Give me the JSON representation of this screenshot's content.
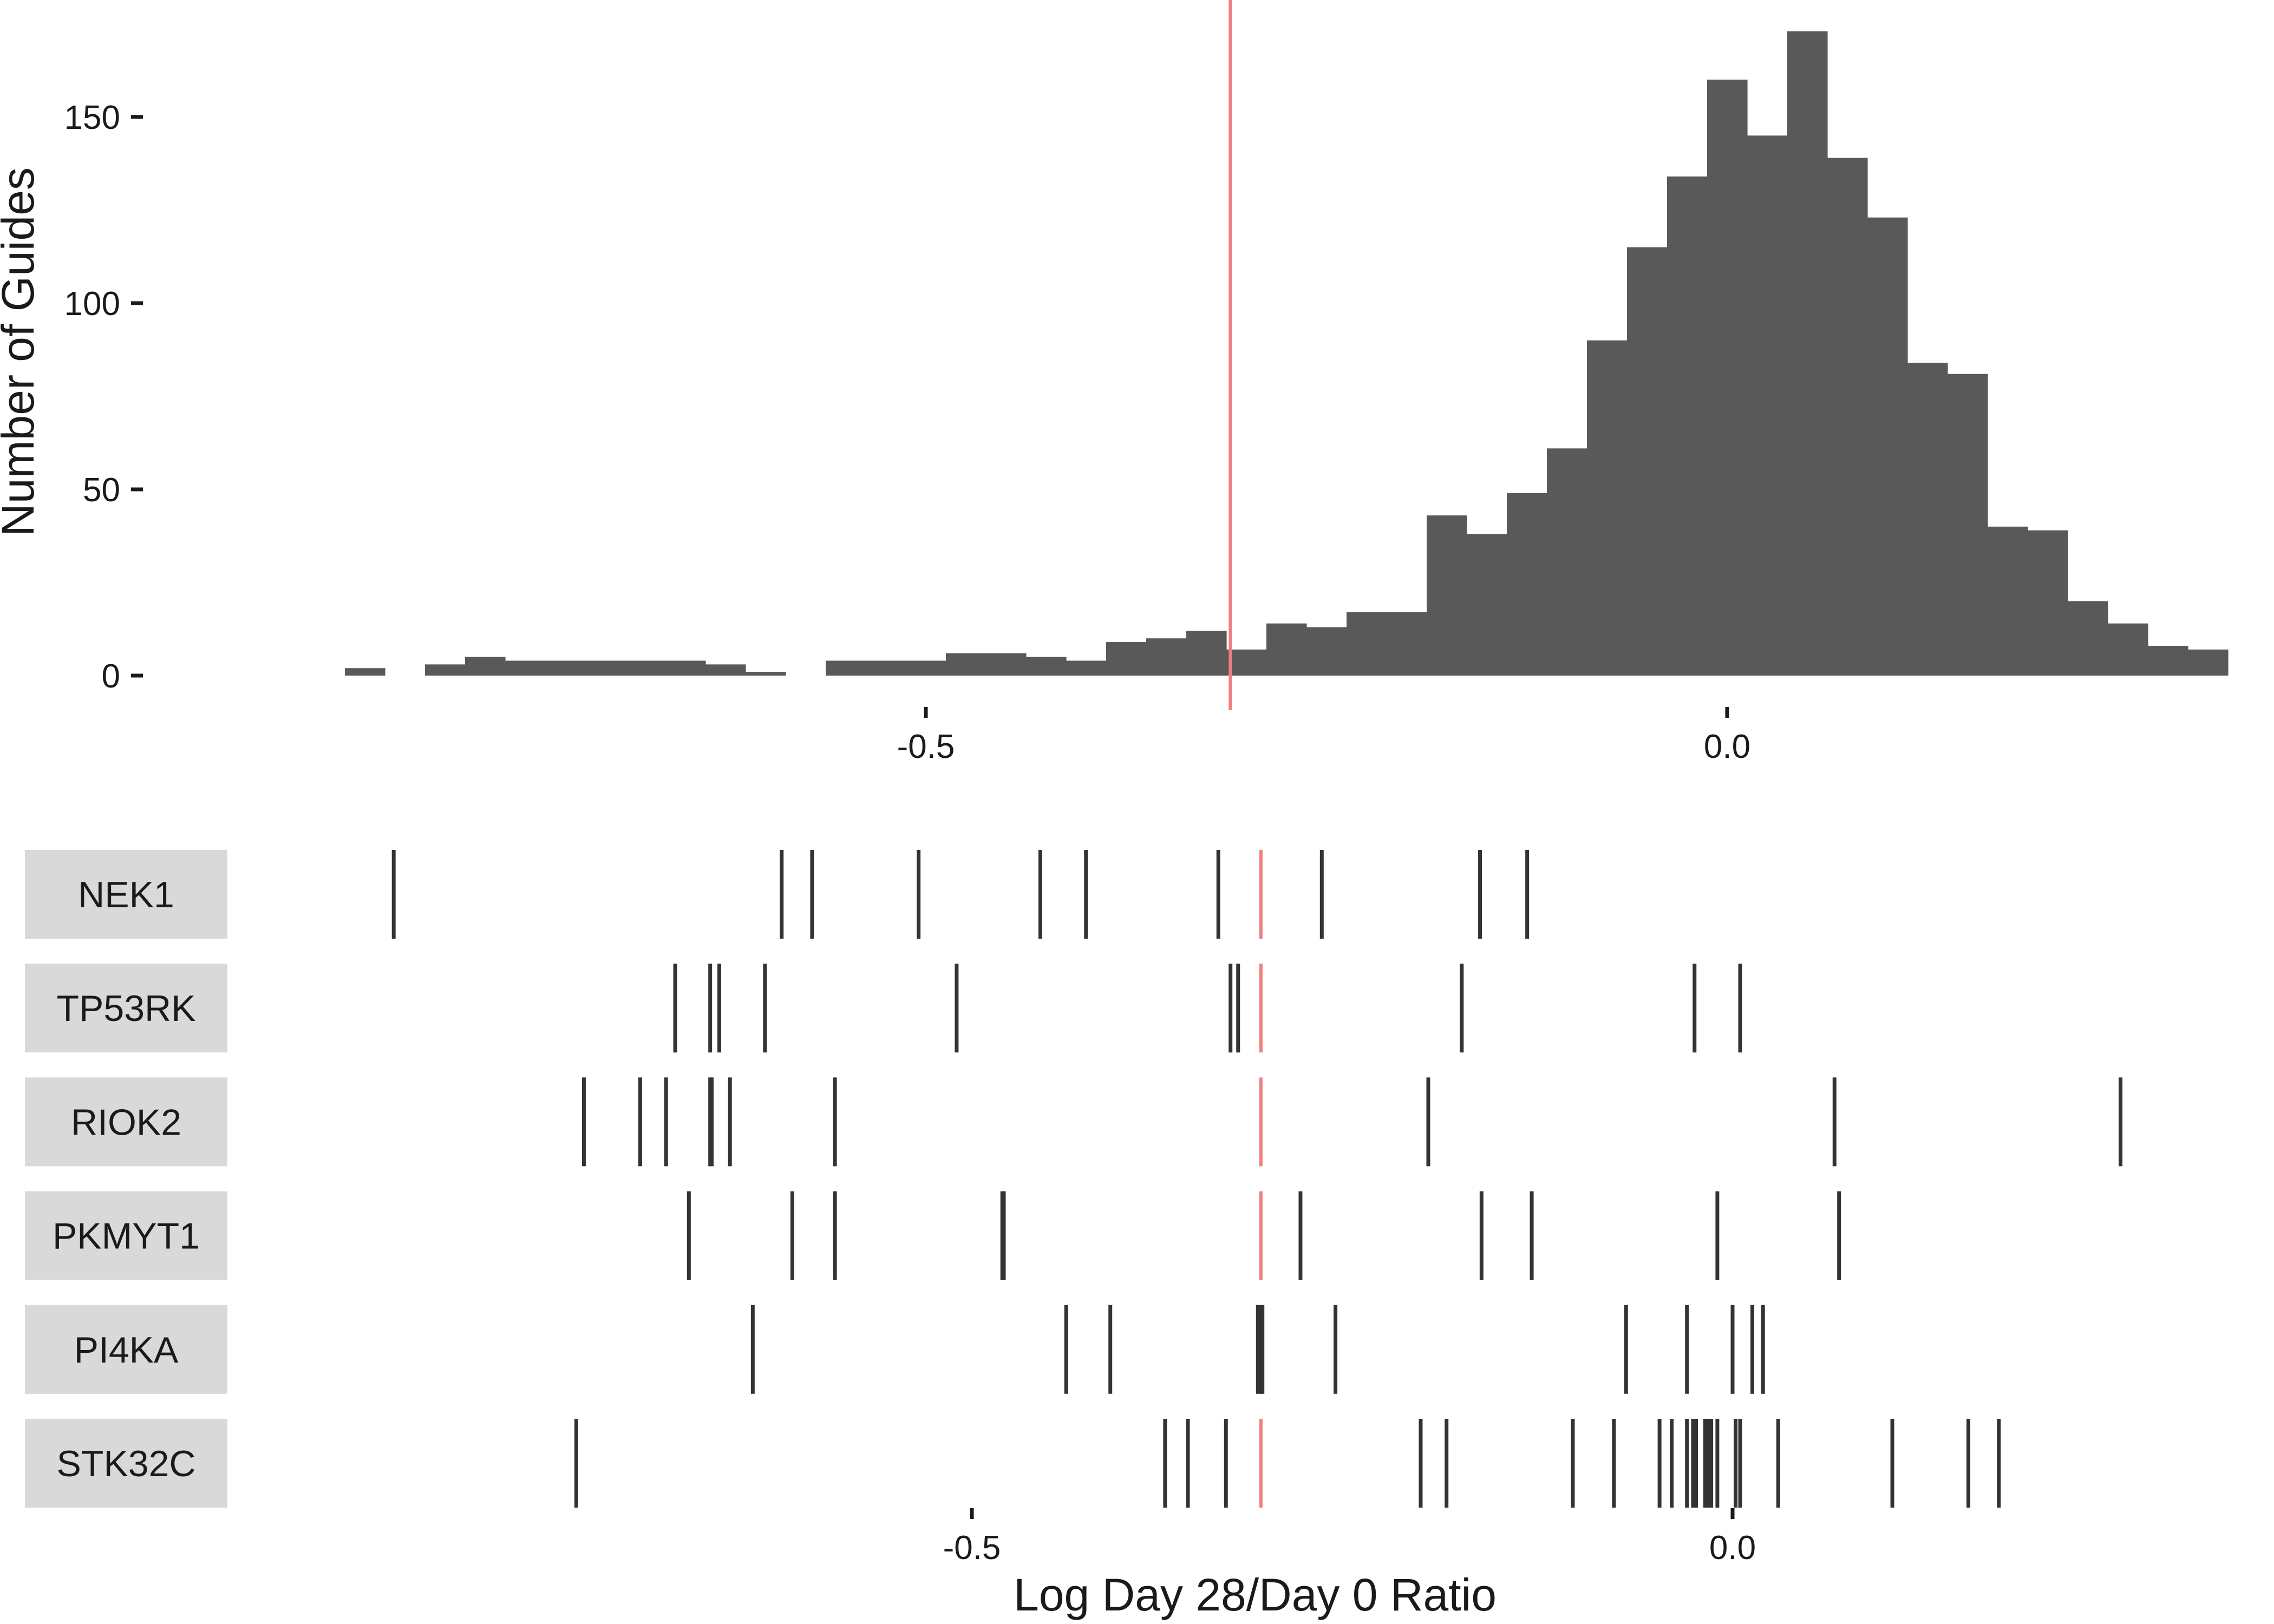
{
  "chart_data": [
    {
      "type": "bar",
      "subtype": "histogram",
      "ylabel": "Number of Guides",
      "xlabel": "",
      "xlim": [
        -0.99,
        0.29
      ],
      "ylim": [
        0,
        175
      ],
      "x_ticks": [
        -0.5,
        0.0
      ],
      "x_tick_labels": [
        "-0.5",
        "0.0"
      ],
      "y_ticks": [
        0,
        50,
        100,
        150
      ],
      "y_tick_labels": [
        "0",
        "50",
        "100",
        "150"
      ],
      "grid": false,
      "bin_width": 0.025,
      "bin_start": -0.8625,
      "values": [
        2,
        0,
        3,
        5,
        4,
        4,
        4,
        4,
        4,
        3,
        1,
        0,
        4,
        4,
        4,
        6,
        6,
        5,
        4,
        9,
        10,
        12,
        7,
        14,
        13,
        17,
        17,
        43,
        38,
        49,
        61,
        90,
        115,
        134,
        160,
        145,
        173,
        139,
        123,
        84,
        81,
        40,
        39,
        20,
        14,
        8,
        7
      ],
      "threshold": {
        "x": -0.31,
        "color": "#f08080"
      },
      "bar_color": "#595959"
    },
    {
      "type": "scatter",
      "subtype": "rug-strips",
      "xlabel": "Log Day 28/Day 0 Ratio",
      "xlim": [
        -0.99,
        0.29
      ],
      "x_ticks": [
        -0.5,
        0.0
      ],
      "x_tick_labels": [
        "-0.5",
        "0.0"
      ],
      "threshold": {
        "x": -0.31,
        "color": "#f08080"
      },
      "strip_color": "#d9d9d9",
      "tick_color": "#333333",
      "genes": [
        {
          "name": "NEK1",
          "x": [
            -0.88,
            -0.625,
            -0.605,
            -0.535,
            -0.455,
            -0.425,
            -0.338,
            -0.27,
            -0.166,
            -0.135
          ]
        },
        {
          "name": "TP53RK",
          "x": [
            -0.695,
            -0.672,
            -0.666,
            -0.636,
            -0.51,
            -0.33,
            -0.325,
            -0.178,
            -0.025,
            0.005
          ]
        },
        {
          "name": "RIOK2",
          "x": [
            -0.755,
            -0.718,
            -0.701,
            -0.672,
            -0.671,
            -0.659,
            -0.59,
            -0.2,
            0.067,
            0.255
          ]
        },
        {
          "name": "PKMYT1",
          "x": [
            -0.686,
            -0.618,
            -0.59,
            -0.48,
            -0.479,
            -0.284,
            -0.165,
            -0.132,
            -0.01,
            0.07
          ]
        },
        {
          "name": "PI4KA",
          "x": [
            -0.644,
            -0.438,
            -0.409,
            -0.312,
            -0.31,
            -0.309,
            -0.261,
            -0.07,
            -0.03,
            0.0,
            0.013,
            0.02
          ]
        },
        {
          "name": "STK32C",
          "x": [
            -0.76,
            -0.373,
            -0.358,
            -0.333,
            -0.205,
            -0.188,
            -0.105,
            -0.078,
            -0.048,
            -0.04,
            -0.03,
            -0.026,
            -0.024,
            -0.018,
            -0.016,
            -0.014,
            -0.01,
            0.002,
            0.005,
            0.03,
            0.105,
            0.155,
            0.175
          ]
        }
      ]
    }
  ]
}
